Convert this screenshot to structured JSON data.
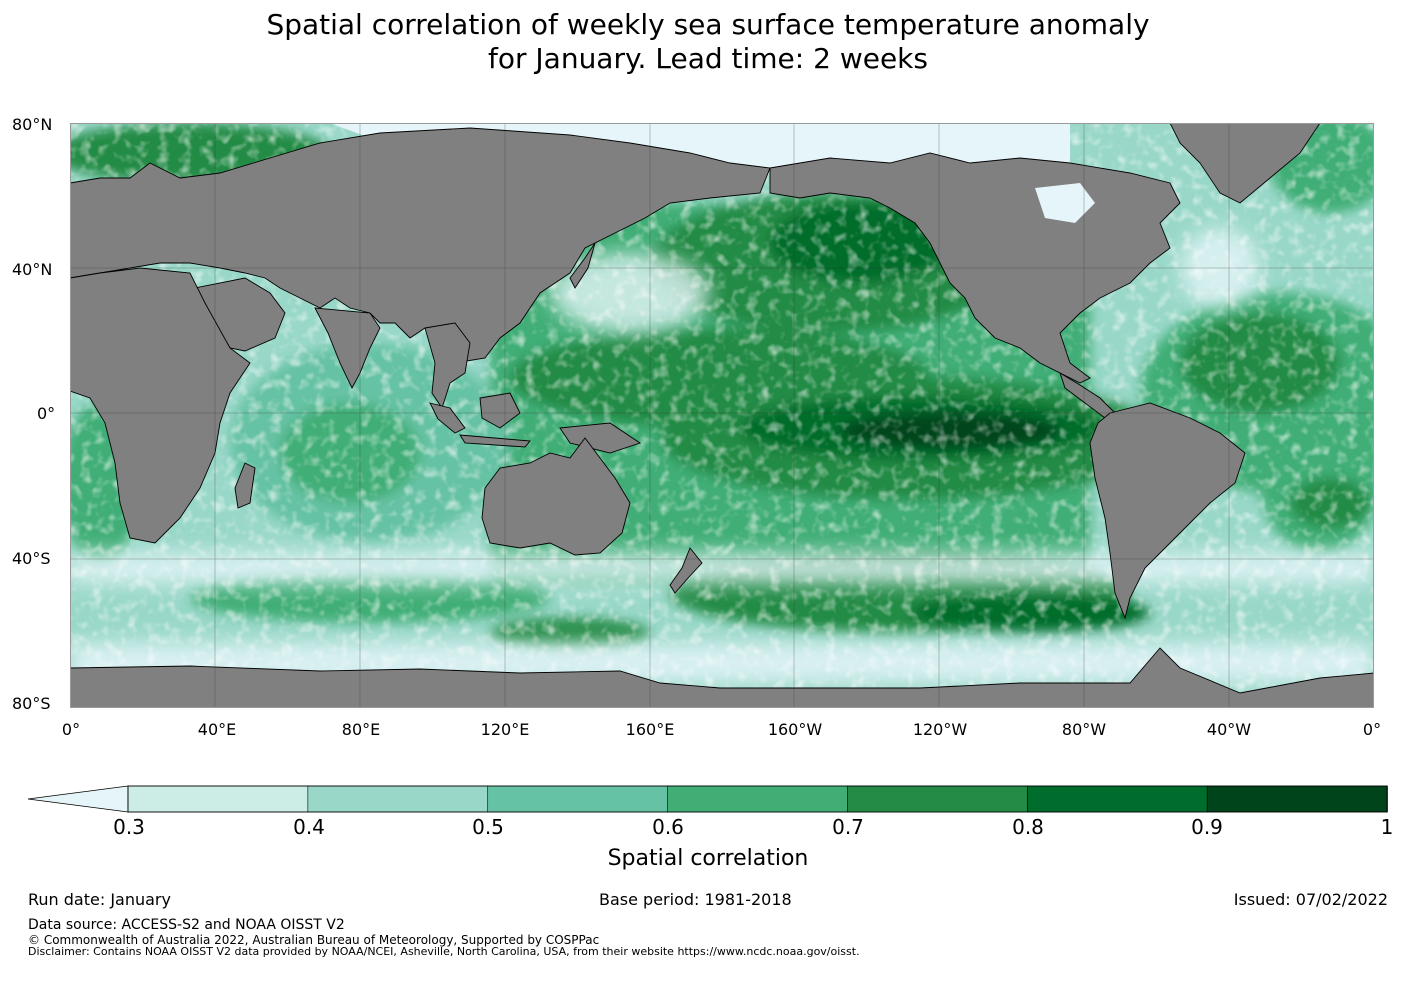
{
  "title_line1": "Spatial correlation of weekly sea surface temperature anomaly",
  "title_line2": "for January. Lead time: 2 weeks",
  "latitude_labels": [
    "80°N",
    "40°N",
    "0°",
    "40°S",
    "80°S"
  ],
  "longitude_labels": [
    "0°",
    "40°E",
    "80°E",
    "120°E",
    "160°E",
    "160°W",
    "120°W",
    "80°W",
    "40°W",
    "0°"
  ],
  "colors": {
    "land": "#808080",
    "ice": "#e5f5f9",
    "levels": [
      "#e5f5f9",
      "#ccece6",
      "#99d8c9",
      "#66c2a4",
      "#41ae76",
      "#238b45",
      "#006d2c",
      "#00441b"
    ]
  },
  "colorbar": {
    "ticks": [
      "0.3",
      "0.4",
      "0.5",
      "0.6",
      "0.7",
      "0.8",
      "0.9",
      "1"
    ],
    "label": "Spatial correlation"
  },
  "footer": {
    "run_date": "Run date: January",
    "base_period": "Base period: 1981-2018",
    "issued": "Issued: 07/02/2022",
    "data_source": "Data source: ACCESS-S2 and NOAA OISST V2",
    "copyright": "© Commonwealth of Australia 2022, Australian Bureau of Meteorology, Supported by COSPPac",
    "disclaimer": "Disclaimer: Contains NOAA OISST V2 data provided by NOAA/NCEI, Asheville, North Carolina, USA, from their website https://www.ncdc.noaa.gov/oisst."
  }
}
